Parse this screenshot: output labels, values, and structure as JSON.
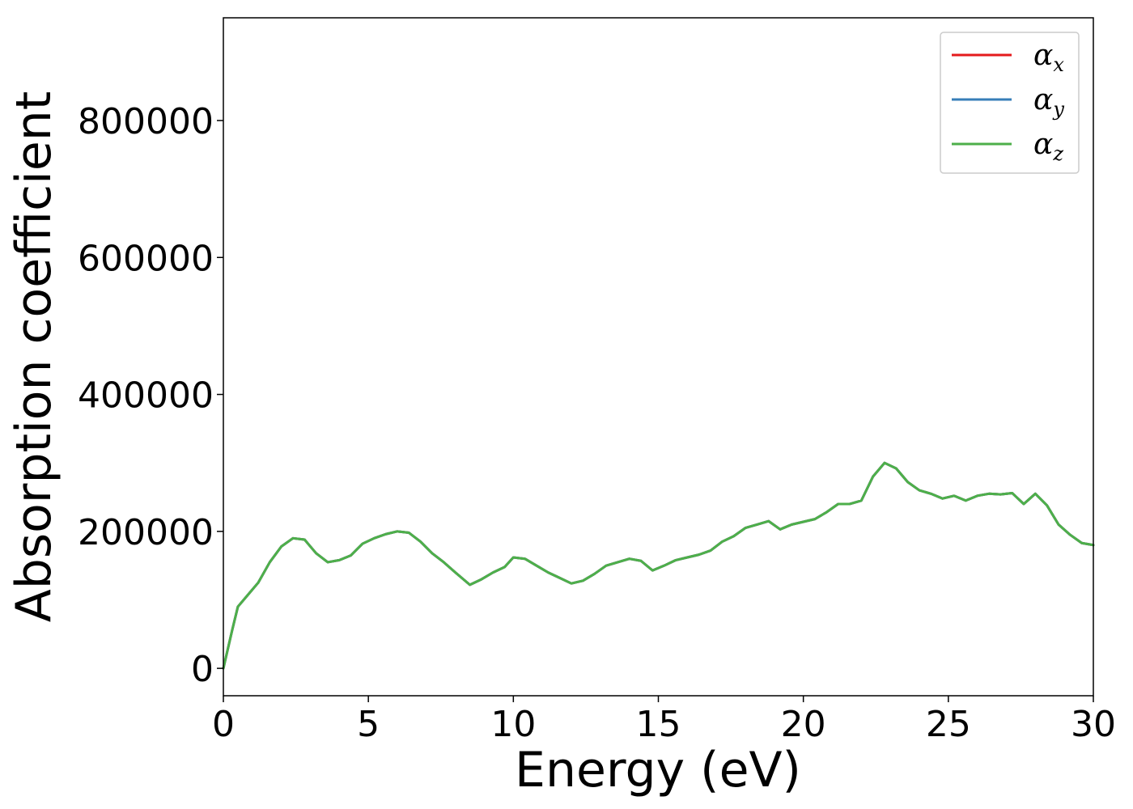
{
  "chart_data": {
    "type": "line",
    "xlabel": "Energy (eV)",
    "ylabel": "Absorption coefficient",
    "xlim": [
      0,
      30
    ],
    "ylim": [
      -40000,
      950000
    ],
    "xticks": [
      0,
      5,
      10,
      15,
      20,
      25,
      30
    ],
    "xtick_labels": [
      "0",
      "5",
      "10",
      "15",
      "20",
      "25",
      "30"
    ],
    "yticks": [
      0,
      200000,
      400000,
      600000,
      800000
    ],
    "ytick_labels": [
      "0",
      "200000",
      "400000",
      "600000",
      "800000"
    ],
    "grid": false,
    "legend_position": "top-right",
    "x": [
      0.0,
      0.3,
      0.5,
      0.8,
      1.2,
      1.6,
      2.0,
      2.4,
      2.8,
      3.2,
      3.6,
      4.0,
      4.4,
      4.8,
      5.2,
      5.6,
      6.0,
      6.4,
      6.8,
      7.2,
      7.6,
      8.0,
      8.5,
      8.9,
      9.3,
      9.7,
      10.0,
      10.4,
      10.8,
      11.2,
      11.6,
      12.0,
      12.4,
      12.8,
      13.2,
      13.6,
      14.0,
      14.4,
      14.8,
      15.2,
      15.6,
      16.0,
      16.4,
      16.8,
      17.2,
      17.6,
      18.0,
      18.4,
      18.8,
      19.2,
      19.6,
      20.0,
      20.4,
      20.8,
      21.2,
      21.6,
      22.0,
      22.4,
      22.8,
      23.2,
      23.6,
      24.0,
      24.4,
      24.8,
      25.2,
      25.6,
      26.0,
      26.4,
      26.8,
      27.2,
      27.6,
      28.0,
      28.4,
      28.8,
      29.2,
      29.6,
      30.0
    ],
    "series": [
      {
        "name": "α_x",
        "label_main": "α",
        "label_sub": "x",
        "color": "#e41a1c",
        "values": [
          0,
          55000,
          90000,
          105000,
          125000,
          155000,
          178000,
          190000,
          188000,
          168000,
          155000,
          158000,
          165000,
          182000,
          190000,
          196000,
          200000,
          198000,
          185000,
          168000,
          155000,
          140000,
          122000,
          130000,
          140000,
          148000,
          162000,
          160000,
          150000,
          140000,
          132000,
          124000,
          128000,
          138000,
          150000,
          155000,
          160000,
          157000,
          143000,
          150000,
          158000,
          162000,
          166000,
          172000,
          185000,
          193000,
          205000,
          210000,
          215000,
          203000,
          210000,
          214000,
          218000,
          228000,
          240000,
          240000,
          245000,
          280000,
          300000,
          292000,
          272000,
          260000,
          255000,
          248000,
          252000,
          245000,
          252000,
          255000,
          254000,
          256000,
          240000,
          255000,
          238000,
          210000,
          195000,
          183000,
          180000
        ]
      },
      {
        "name": "α_y",
        "label_main": "α",
        "label_sub": "y",
        "color": "#377eb8",
        "values": [
          0,
          55000,
          90000,
          105000,
          125000,
          155000,
          178000,
          190000,
          188000,
          168000,
          155000,
          158000,
          165000,
          182000,
          190000,
          196000,
          200000,
          198000,
          185000,
          168000,
          155000,
          140000,
          122000,
          130000,
          140000,
          148000,
          162000,
          160000,
          150000,
          140000,
          132000,
          124000,
          128000,
          138000,
          150000,
          155000,
          160000,
          157000,
          143000,
          150000,
          158000,
          162000,
          166000,
          172000,
          185000,
          193000,
          205000,
          210000,
          215000,
          203000,
          210000,
          214000,
          218000,
          228000,
          240000,
          240000,
          245000,
          280000,
          300000,
          292000,
          272000,
          260000,
          255000,
          248000,
          252000,
          245000,
          252000,
          255000,
          254000,
          256000,
          240000,
          255000,
          238000,
          210000,
          195000,
          183000,
          180000
        ]
      },
      {
        "name": "α_z",
        "label_main": "α",
        "label_sub": "z",
        "color": "#4daf4a",
        "values": [
          0,
          55000,
          90000,
          105000,
          125000,
          155000,
          178000,
          190000,
          188000,
          168000,
          155000,
          158000,
          165000,
          182000,
          190000,
          196000,
          200000,
          198000,
          185000,
          168000,
          155000,
          140000,
          122000,
          130000,
          140000,
          148000,
          162000,
          160000,
          150000,
          140000,
          132000,
          124000,
          128000,
          138000,
          150000,
          155000,
          160000,
          157000,
          143000,
          150000,
          158000,
          162000,
          166000,
          172000,
          185000,
          193000,
          205000,
          210000,
          215000,
          203000,
          210000,
          214000,
          218000,
          228000,
          240000,
          240000,
          245000,
          280000,
          300000,
          292000,
          272000,
          260000,
          255000,
          248000,
          252000,
          245000,
          252000,
          255000,
          254000,
          256000,
          240000,
          255000,
          238000,
          210000,
          195000,
          183000,
          180000
        ]
      }
    ]
  }
}
